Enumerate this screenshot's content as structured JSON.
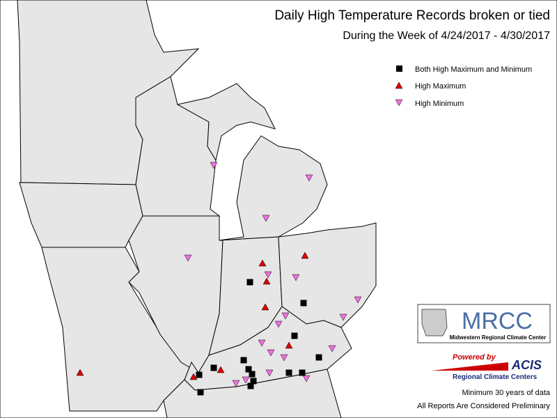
{
  "header": {
    "title": "Daily High Temperature Records broken or tied",
    "subtitle": "During the Week of 4/24/2017 - 4/30/2017"
  },
  "legend": {
    "items": [
      "Both High Maximum and Minimum",
      "High Maximum",
      "High Minimum"
    ]
  },
  "logo": {
    "name": "MRCC",
    "full_name": "Midwestern Regional Climate Center"
  },
  "acis": {
    "powered": "Powered by",
    "name": "ACIS",
    "sub": "Regional Climate Centers"
  },
  "notes": [
    "Minimum 30 years of data",
    "All Reports Are Considered Preliminary"
  ]
}
